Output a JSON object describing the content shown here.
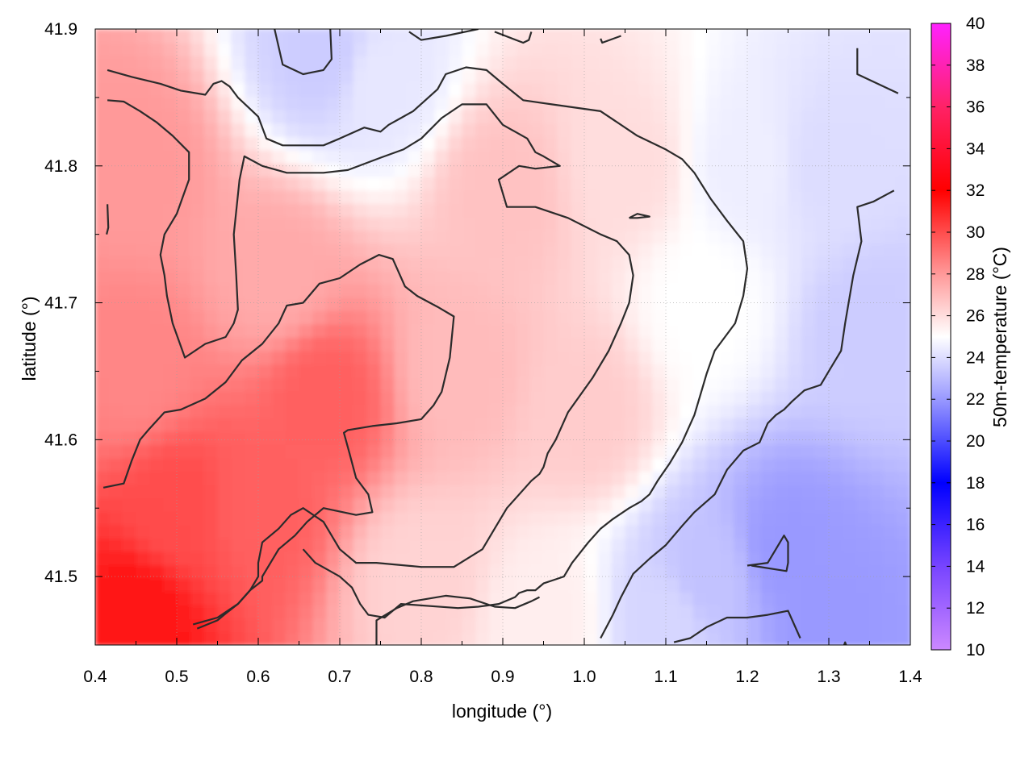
{
  "chart_data": {
    "type": "heatmap",
    "title": "",
    "xlabel": "longitude (°)",
    "ylabel": "latitude (°)",
    "colorbar_label": "50m-temperature (°C)",
    "xlim": [
      0.4,
      1.4
    ],
    "ylim": [
      41.45,
      41.9
    ],
    "xticks": [
      "0.4",
      "0.5",
      "0.6",
      "0.7",
      "0.8",
      "0.9",
      "1.0",
      "1.1",
      "1.2",
      "1.3",
      "1.4"
    ],
    "yticks": [
      "41.5",
      "41.6",
      "41.7",
      "41.8",
      "41.9"
    ],
    "colorbar_range": [
      10,
      40
    ],
    "colorbar_ticks": [
      "10",
      "12",
      "14",
      "16",
      "18",
      "20",
      "22",
      "24",
      "26",
      "28",
      "30",
      "32",
      "34",
      "36",
      "38",
      "40"
    ],
    "colorscale": [
      {
        "value": 10,
        "color": "#cc88ff"
      },
      {
        "value": 14,
        "color": "#7744ff"
      },
      {
        "value": 18,
        "color": "#0000ff"
      },
      {
        "value": 22,
        "color": "#9999ff"
      },
      {
        "value": 25,
        "color": "#ffffff"
      },
      {
        "value": 28,
        "color": "#ff9999"
      },
      {
        "value": 32,
        "color": "#ff0000"
      },
      {
        "value": 36,
        "color": "#ff2266"
      },
      {
        "value": 40,
        "color": "#ff22ff"
      }
    ],
    "field_anchors": [
      {
        "lon": 0.45,
        "lat": 41.47,
        "temp": 31.5
      },
      {
        "lon": 0.5,
        "lat": 41.55,
        "temp": 30.0
      },
      {
        "lon": 0.6,
        "lat": 41.55,
        "temp": 29.5
      },
      {
        "lon": 0.68,
        "lat": 41.63,
        "temp": 29.5
      },
      {
        "lon": 0.45,
        "lat": 41.65,
        "temp": 28.5
      },
      {
        "lon": 0.45,
        "lat": 41.8,
        "temp": 28.0
      },
      {
        "lon": 0.62,
        "lat": 41.72,
        "temp": 27.5
      },
      {
        "lon": 0.85,
        "lat": 41.65,
        "temp": 27.0
      },
      {
        "lon": 0.9,
        "lat": 41.78,
        "temp": 26.8
      },
      {
        "lon": 1.0,
        "lat": 41.62,
        "temp": 26.5
      },
      {
        "lon": 0.8,
        "lat": 41.5,
        "temp": 26.3
      },
      {
        "lon": 1.05,
        "lat": 41.8,
        "temp": 26.0
      },
      {
        "lon": 0.95,
        "lat": 41.47,
        "temp": 25.5
      },
      {
        "lon": 1.15,
        "lat": 41.7,
        "temp": 25.0
      },
      {
        "lon": 1.2,
        "lat": 41.8,
        "temp": 24.5
      },
      {
        "lon": 0.68,
        "lat": 41.88,
        "temp": 23.5
      },
      {
        "lon": 0.75,
        "lat": 41.86,
        "temp": 24.3
      },
      {
        "lon": 1.3,
        "lat": 41.8,
        "temp": 24.0
      },
      {
        "lon": 1.35,
        "lat": 41.68,
        "temp": 23.5
      },
      {
        "lon": 1.25,
        "lat": 41.52,
        "temp": 22.0
      },
      {
        "lon": 1.3,
        "lat": 41.47,
        "temp": 22.0
      },
      {
        "lon": 1.15,
        "lat": 41.5,
        "temp": 23.2
      },
      {
        "lon": 1.1,
        "lat": 41.47,
        "temp": 23.8
      }
    ],
    "contours": [
      {
        "lon": [
          0.415,
          0.445,
          0.48,
          0.505,
          0.535,
          0.545,
          0.555,
          0.565,
          0.575,
          0.6,
          0.61,
          0.63,
          0.68,
          0.7,
          0.73,
          0.75,
          0.76,
          0.775,
          0.79,
          0.805,
          0.82,
          0.83,
          0.855,
          0.88,
          0.9,
          0.925,
          0.96,
          1.02,
          1.065,
          1.1,
          1.12,
          1.135,
          1.155,
          1.175,
          1.195,
          1.2,
          1.195,
          1.185,
          1.16,
          1.15,
          1.145,
          1.135,
          1.12,
          1.105,
          1.09,
          1.08,
          1.07,
          1.055,
          1.035,
          1.02,
          1.005,
          0.985,
          0.975,
          0.965,
          0.95,
          0.94,
          0.93,
          0.92,
          0.915,
          0.895,
          0.87,
          0.845,
          0.775,
          0.755,
          0.735,
          0.725,
          0.715,
          0.7,
          0.685,
          0.67,
          0.655
        ],
        "lat": [
          41.87,
          41.865,
          41.86,
          41.855,
          41.852,
          41.86,
          41.862,
          41.858,
          41.85,
          41.836,
          41.82,
          41.815,
          41.815,
          41.82,
          41.828,
          41.825,
          41.83,
          41.835,
          41.84,
          41.848,
          41.856,
          41.867,
          41.872,
          41.87,
          41.86,
          41.848,
          41.845,
          41.84,
          41.822,
          41.812,
          41.805,
          41.795,
          41.776,
          41.76,
          41.745,
          41.725,
          41.705,
          41.685,
          41.665,
          41.648,
          41.638,
          41.618,
          41.598,
          41.583,
          41.57,
          41.56,
          41.555,
          41.55,
          41.542,
          41.535,
          41.525,
          41.51,
          41.5,
          41.498,
          41.495,
          41.49,
          41.49,
          41.488,
          41.485,
          41.48,
          41.478,
          41.477,
          41.48,
          41.47,
          41.472,
          41.48,
          41.492,
          41.5,
          41.505,
          41.51,
          41.52
        ]
      },
      {
        "lon": [
          0.415,
          0.435,
          0.455,
          0.475,
          0.495,
          0.515,
          0.515,
          0.5,
          0.485,
          0.48,
          0.485,
          0.488,
          0.495,
          0.51,
          0.535,
          0.56,
          0.57,
          0.575,
          0.573,
          0.57,
          0.577,
          0.583,
          0.605,
          0.635,
          0.68,
          0.71,
          0.75,
          0.778,
          0.8,
          0.825,
          0.85,
          0.88,
          0.9,
          0.93,
          0.94,
          0.95,
          0.97,
          0.94,
          0.92,
          0.895,
          0.905,
          0.94,
          0.98,
          1.0,
          1.02,
          1.04,
          1.055,
          1.06,
          1.055,
          1.045,
          1.03,
          1.01,
          0.98,
          0.965,
          0.955,
          0.95,
          0.945,
          0.935,
          0.905,
          0.89,
          0.875,
          0.84,
          0.8,
          0.745,
          0.72,
          0.7,
          0.68,
          0.655,
          0.64,
          0.625,
          0.605,
          0.6,
          0.6,
          0.59,
          0.575,
          0.56,
          0.55,
          0.525
        ],
        "lat": [
          41.848,
          41.847,
          41.84,
          41.832,
          41.822,
          41.81,
          41.79,
          41.765,
          41.75,
          41.735,
          41.72,
          41.705,
          41.685,
          41.66,
          41.67,
          41.675,
          41.685,
          41.695,
          41.72,
          41.75,
          41.79,
          41.807,
          41.8,
          41.795,
          41.795,
          41.797,
          41.806,
          41.812,
          41.82,
          41.835,
          41.845,
          41.845,
          41.83,
          41.82,
          41.81,
          41.807,
          41.8,
          41.798,
          41.8,
          41.79,
          41.77,
          41.77,
          41.762,
          41.756,
          41.75,
          41.745,
          41.735,
          41.72,
          41.7,
          41.685,
          41.665,
          41.645,
          41.62,
          41.6,
          41.59,
          41.58,
          41.575,
          41.57,
          41.55,
          41.535,
          41.52,
          41.507,
          41.507,
          41.51,
          41.51,
          41.52,
          41.54,
          41.55,
          41.545,
          41.535,
          41.525,
          41.51,
          41.5,
          41.49,
          41.48,
          41.473,
          41.468,
          41.462
        ]
      },
      {
        "lon": [
          0.41,
          0.435,
          0.445,
          0.455,
          0.465,
          0.485,
          0.505,
          0.535,
          0.56,
          0.58,
          0.605,
          0.625,
          0.635,
          0.655,
          0.675,
          0.7,
          0.725,
          0.748,
          0.765,
          0.78,
          0.795,
          0.82,
          0.84,
          0.835,
          0.825,
          0.815,
          0.8,
          0.77,
          0.74,
          0.71,
          0.705,
          0.712,
          0.72,
          0.735,
          0.74,
          0.72,
          0.68,
          0.66,
          0.645,
          0.625,
          0.605,
          0.605,
          0.59,
          0.575,
          0.55,
          0.52
        ],
        "lat": [
          41.565,
          41.568,
          41.585,
          41.6,
          41.607,
          41.62,
          41.622,
          41.63,
          41.642,
          41.658,
          41.67,
          41.685,
          41.698,
          41.7,
          41.714,
          41.718,
          41.728,
          41.735,
          41.732,
          41.712,
          41.705,
          41.697,
          41.69,
          41.66,
          41.635,
          41.625,
          41.615,
          41.612,
          41.61,
          41.607,
          41.605,
          41.59,
          41.572,
          41.56,
          41.547,
          41.545,
          41.55,
          41.54,
          41.53,
          41.52,
          41.5,
          41.497,
          41.49,
          41.48,
          41.47,
          41.465
        ]
      },
      {
        "lon": [
          0.745,
          0.745,
          0.77,
          0.79,
          0.81,
          0.83,
          0.86,
          0.89,
          0.915,
          0.935,
          0.945
        ],
        "lat": [
          41.45,
          41.468,
          41.477,
          41.482,
          41.484,
          41.486,
          41.484,
          41.478,
          41.477,
          41.482,
          41.485
        ]
      },
      {
        "lon": [
          1.02,
          1.035,
          1.045,
          1.06,
          1.08,
          1.1,
          1.12,
          1.135,
          1.16,
          1.175,
          1.195,
          1.215,
          1.225,
          1.235,
          1.245,
          1.255,
          1.27,
          1.29,
          1.302,
          1.315,
          1.32,
          1.33,
          1.34,
          1.335,
          1.355,
          1.38
        ],
        "lat": [
          41.455,
          41.472,
          41.485,
          41.502,
          41.513,
          41.523,
          41.537,
          41.547,
          41.56,
          41.578,
          41.592,
          41.598,
          41.612,
          41.618,
          41.622,
          41.628,
          41.636,
          41.64,
          41.652,
          41.665,
          41.685,
          41.72,
          41.745,
          41.77,
          41.774,
          41.782
        ]
      },
      {
        "lon": [
          1.11,
          1.13,
          1.15,
          1.175,
          1.2,
          1.225,
          1.25,
          1.265
        ],
        "lat": [
          41.452,
          41.455,
          41.463,
          41.47,
          41.47,
          41.472,
          41.475,
          41.455
        ]
      },
      {
        "lon": [
          1.2,
          1.225,
          1.235,
          1.245,
          1.25,
          1.25,
          1.248,
          1.205
        ],
        "lat": [
          41.508,
          41.51,
          41.52,
          41.53,
          41.525,
          41.51,
          41.504,
          41.508
        ]
      },
      {
        "lon": [
          1.055,
          1.065,
          1.08,
          1.065,
          1.055
        ],
        "lat": [
          41.762,
          41.765,
          41.763,
          41.762,
          41.762
        ]
      },
      {
        "lon": [
          0.415,
          0.416,
          0.414
        ],
        "lat": [
          41.772,
          41.755,
          41.75
        ]
      },
      {
        "lon": [
          0.62,
          0.63,
          0.655,
          0.68,
          0.69,
          0.688
        ],
        "lat": [
          41.9,
          41.874,
          41.867,
          41.87,
          41.878,
          41.905
        ]
      },
      {
        "lon": [
          0.785,
          0.8,
          0.83,
          0.87
        ],
        "lat": [
          41.898,
          41.892,
          41.895,
          41.9
        ]
      },
      {
        "lon": [
          0.89,
          0.925,
          0.932,
          0.935
        ],
        "lat": [
          41.898,
          41.89,
          41.892,
          41.898
        ]
      },
      {
        "lon": [
          1.02,
          1.022,
          1.045
        ],
        "lat": [
          41.893,
          41.89,
          41.895
        ]
      },
      {
        "lon": [
          1.335,
          1.335,
          1.36,
          1.385
        ],
        "lat": [
          41.886,
          41.867,
          41.86,
          41.853
        ]
      },
      {
        "lon": [
          1.317,
          1.32,
          1.323
        ],
        "lat": [
          41.447,
          41.452,
          41.447
        ]
      }
    ]
  }
}
